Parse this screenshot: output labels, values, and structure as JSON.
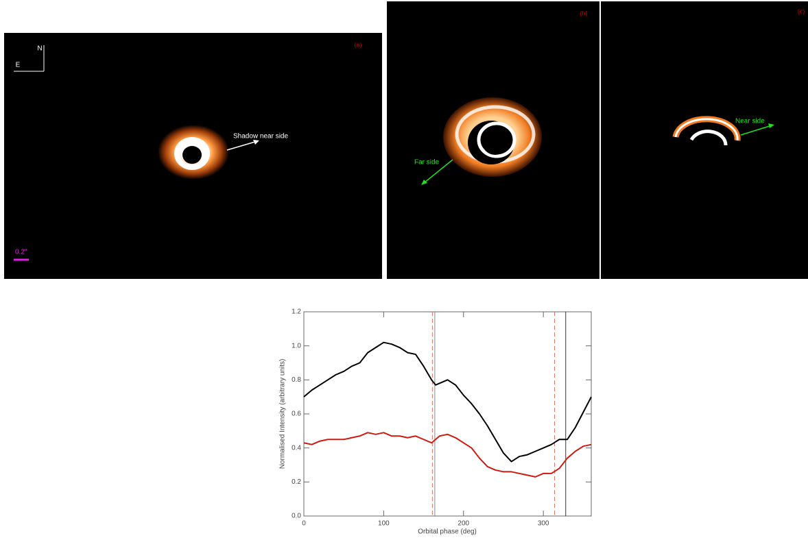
{
  "panels": {
    "a": {
      "label": "(a)",
      "north": "N",
      "east": "E",
      "annotation": "Shadow near side",
      "scale": "0.2\""
    },
    "b": {
      "label": "(b)",
      "annotation": "Far side"
    },
    "c": {
      "label": "(c)",
      "annotation": "Near side"
    }
  },
  "chart_data": {
    "type": "line",
    "xlabel": "Orbital phase (deg)",
    "ylabel": "Normalised Intensity (arbitrary units)",
    "xlim": [
      0,
      360
    ],
    "ylim": [
      0,
      1.2
    ],
    "xticks": [
      0,
      100,
      200,
      300
    ],
    "yticks": [
      {
        "value": 0,
        "label": "0.0"
      },
      0.2,
      0.4,
      0.6,
      0.8,
      {
        "value": 1,
        "label": "1.0"
      },
      1.2
    ],
    "x": [
      0,
      10,
      20,
      30,
      40,
      50,
      60,
      70,
      80,
      90,
      100,
      110,
      120,
      130,
      140,
      150,
      160,
      165,
      170,
      180,
      190,
      200,
      210,
      220,
      230,
      240,
      250,
      260,
      270,
      280,
      290,
      300,
      310,
      320,
      330,
      340,
      350,
      360
    ],
    "series": [
      {
        "color": "#000000",
        "values": [
          0.7,
          0.74,
          0.77,
          0.8,
          0.83,
          0.85,
          0.88,
          0.9,
          0.96,
          0.99,
          1.02,
          1.01,
          0.99,
          0.96,
          0.95,
          0.88,
          0.8,
          0.77,
          0.78,
          0.8,
          0.77,
          0.71,
          0.66,
          0.6,
          0.53,
          0.45,
          0.37,
          0.32,
          0.35,
          0.36,
          0.38,
          0.4,
          0.42,
          0.45,
          0.45,
          0.52,
          0.61,
          0.7
        ]
      },
      {
        "color": "#cc1a10",
        "values": [
          0.43,
          0.42,
          0.44,
          0.45,
          0.45,
          0.45,
          0.46,
          0.47,
          0.49,
          0.48,
          0.49,
          0.47,
          0.47,
          0.46,
          0.47,
          0.45,
          0.43,
          0.45,
          0.47,
          0.48,
          0.46,
          0.43,
          0.4,
          0.34,
          0.29,
          0.27,
          0.26,
          0.26,
          0.25,
          0.24,
          0.23,
          0.25,
          0.25,
          0.28,
          0.34,
          0.38,
          0.41,
          0.42
        ]
      }
    ],
    "vlines": [
      {
        "value": 161,
        "color": "#e07060",
        "style": "dashed"
      },
      {
        "value": 164,
        "color": "#888888",
        "style": "solid"
      },
      {
        "value": 314,
        "color": "#e07060",
        "style": "dashed"
      },
      {
        "value": 328,
        "color": "#333333",
        "style": "solid"
      }
    ]
  }
}
